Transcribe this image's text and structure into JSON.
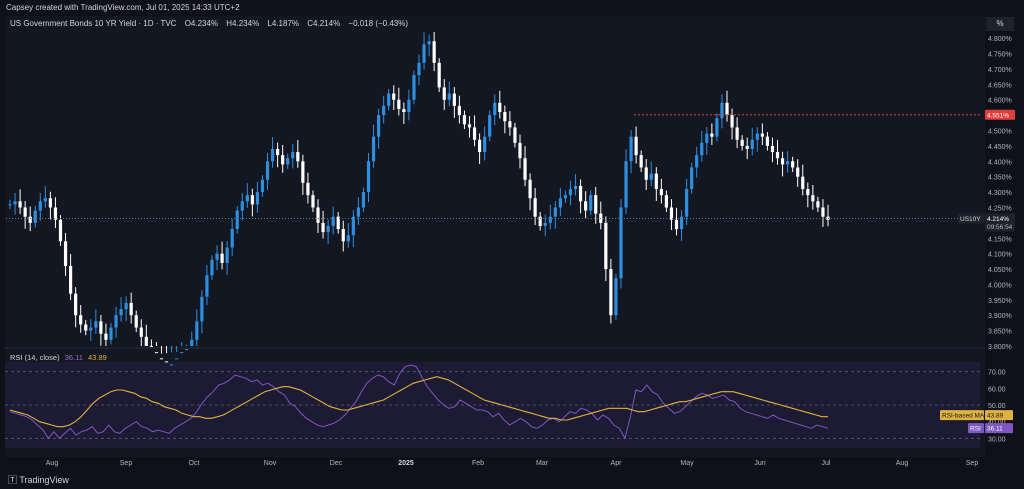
{
  "header": {
    "created_by": "Capsey created with TradingView.com, Jul 01, 2025 14:33 UTC+2"
  },
  "legend": {
    "title": "US Government Bonds 10 YR Yield · 1D · TVC",
    "open": "O4.234%",
    "high": "H4.234%",
    "low": "L4.187%",
    "close": "C4.214%",
    "change": "−0.018 (−0.43%)"
  },
  "rsi_legend": {
    "label": "RSI (14, close)",
    "rsi": "36.11",
    "ma": "43.89"
  },
  "price_axis": {
    "unit_button": "%",
    "ticks": [
      "4.800%",
      "4.750%",
      "4.700%",
      "4.650%",
      "4.600%",
      "4.550%",
      "4.500%",
      "4.450%",
      "4.400%",
      "4.350%",
      "4.300%",
      "4.250%",
      "4.200%",
      "4.150%",
      "4.100%",
      "4.050%",
      "4.000%",
      "3.950%",
      "3.900%",
      "3.850%",
      "3.800%"
    ]
  },
  "rsi_axis": {
    "ticks": [
      "70.00",
      "60.00",
      "50.00",
      "40.00",
      "30.00"
    ]
  },
  "time_axis": {
    "labels": [
      "Aug",
      "Sep",
      "Oct",
      "Nov",
      "Dec",
      "2025",
      "Feb",
      "Mar",
      "Apr",
      "May",
      "Jun",
      "Jul",
      "Aug",
      "Sep"
    ]
  },
  "markers": {
    "resistance_label": "4.551%",
    "symbol": "US10Y",
    "last_price": "4.214%",
    "countdown": "09:56:54",
    "rsi_ma_label": "RSI-based MA",
    "rsi_ma_value": "43.89",
    "rsi_label": "RSI",
    "rsi_value": "36.11"
  },
  "footer": {
    "logo": "TradingView"
  },
  "colors": {
    "up": "#2e8ee0",
    "down": "#ffffff",
    "resistance": "#e23d3d",
    "rsi": "#7e57c2",
    "rsi_ma": "#e0b23f",
    "background": "#131722"
  },
  "chart_data": {
    "type": "candlestick",
    "title": "US Government Bonds 10 YR Yield · 1D · TVC",
    "ylim": [
      3.8,
      4.82
    ],
    "resistance": 4.551,
    "last": 4.214,
    "x_months": [
      "Aug",
      "Sep",
      "Oct",
      "Nov",
      "Dec",
      "2025",
      "Feb",
      "Mar",
      "Apr",
      "May",
      "Jun",
      "Jul"
    ],
    "close_path": [
      4.26,
      4.27,
      4.25,
      4.22,
      4.2,
      4.24,
      4.27,
      4.28,
      4.25,
      4.21,
      4.14,
      4.06,
      3.97,
      3.9,
      3.87,
      3.85,
      3.86,
      3.88,
      3.84,
      3.82,
      3.86,
      3.9,
      3.92,
      3.94,
      3.9,
      3.86,
      3.83,
      3.8,
      3.78,
      3.76,
      3.75,
      3.74,
      3.74,
      3.76,
      3.78,
      3.79,
      3.82,
      3.88,
      3.96,
      4.03,
      4.08,
      4.1,
      4.07,
      4.12,
      4.18,
      4.24,
      4.27,
      4.29,
      4.26,
      4.3,
      4.34,
      4.4,
      4.44,
      4.42,
      4.39,
      4.41,
      4.43,
      4.4,
      4.33,
      4.29,
      4.25,
      4.2,
      4.17,
      4.19,
      4.22,
      4.18,
      4.14,
      4.16,
      4.22,
      4.25,
      4.3,
      4.4,
      4.48,
      4.55,
      4.58,
      4.62,
      4.6,
      4.57,
      4.56,
      4.6,
      4.68,
      4.72,
      4.78,
      4.79,
      4.72,
      4.64,
      4.6,
      4.62,
      4.58,
      4.55,
      4.52,
      4.51,
      4.47,
      4.43,
      4.48,
      4.55,
      4.59,
      4.56,
      4.53,
      4.51,
      4.46,
      4.41,
      4.34,
      4.28,
      4.22,
      4.19,
      4.2,
      4.22,
      4.25,
      4.28,
      4.29,
      4.31,
      4.32,
      4.27,
      4.24,
      4.29,
      4.23,
      4.2,
      4.05,
      3.9,
      4.02,
      4.25,
      4.4,
      4.48,
      4.42,
      4.38,
      4.34,
      4.36,
      4.31,
      4.29,
      4.25,
      4.21,
      4.18,
      4.22,
      4.31,
      4.38,
      4.42,
      4.46,
      4.49,
      4.48,
      4.54,
      4.59,
      4.55,
      4.51,
      4.47,
      4.45,
      4.44,
      4.47,
      4.49,
      4.48,
      4.45,
      4.43,
      4.41,
      4.39,
      4.4,
      4.38,
      4.35,
      4.31,
      4.29,
      4.27,
      4.25,
      4.22,
      4.21
    ],
    "rsi": [
      46,
      45,
      44,
      43,
      41,
      38,
      35,
      30,
      34,
      30,
      33,
      36,
      32,
      34,
      35,
      37,
      33,
      34,
      38,
      34,
      33,
      36,
      38,
      40,
      37,
      36,
      34,
      35,
      34,
      33,
      36,
      38,
      40,
      42,
      46,
      51,
      55,
      58,
      62,
      63,
      65,
      68,
      67,
      66,
      64,
      65,
      62,
      63,
      61,
      58,
      56,
      51,
      49,
      45,
      42,
      40,
      38,
      37,
      38,
      39,
      41,
      44,
      48,
      52,
      58,
      63,
      66,
      68,
      67,
      64,
      62,
      69,
      73,
      74,
      73,
      67,
      61,
      57,
      53,
      50,
      48,
      49,
      53,
      51,
      49,
      47,
      47,
      46,
      43,
      45,
      41,
      38,
      40,
      42,
      40,
      37,
      36,
      38,
      41,
      42,
      40,
      43,
      46,
      45,
      48,
      47,
      45,
      41,
      44,
      42,
      38,
      36,
      30,
      43,
      59,
      58,
      62,
      58,
      56,
      51,
      48,
      45,
      46,
      49,
      52,
      55,
      57,
      56,
      54,
      55,
      56,
      53,
      52,
      48,
      46,
      45,
      44,
      43,
      42,
      44,
      42,
      41,
      40,
      39,
      38,
      37,
      36,
      38,
      37,
      36
    ],
    "rsi_ma": [
      47,
      46,
      45,
      44,
      42,
      40,
      39,
      38,
      37,
      37,
      38,
      40,
      43,
      47,
      51,
      54,
      56,
      58,
      59,
      59,
      58,
      57,
      55,
      54,
      52,
      51,
      49,
      48,
      47,
      45,
      44,
      43,
      43,
      42,
      42,
      43,
      44,
      46,
      48,
      50,
      52,
      54,
      56,
      58,
      59,
      60,
      61,
      61,
      60,
      59,
      57,
      55,
      53,
      51,
      49,
      48,
      47,
      47,
      48,
      49,
      50,
      51,
      52,
      53,
      55,
      57,
      59,
      61,
      63,
      64,
      65,
      66,
      67,
      66,
      65,
      63,
      61,
      59,
      57,
      55,
      53,
      52,
      51,
      50,
      49,
      48,
      47,
      46,
      45,
      44,
      43,
      42,
      42,
      41,
      41,
      42,
      43,
      44,
      45,
      46,
      47,
      48,
      48,
      48,
      48,
      47,
      46,
      46,
      47,
      48,
      49,
      50,
      51,
      52,
      52,
      53,
      54,
      55,
      56,
      57,
      58,
      58,
      58,
      57,
      56,
      55,
      54,
      53,
      52,
      51,
      50,
      49,
      48,
      47,
      46,
      45,
      44,
      43,
      43
    ]
  }
}
